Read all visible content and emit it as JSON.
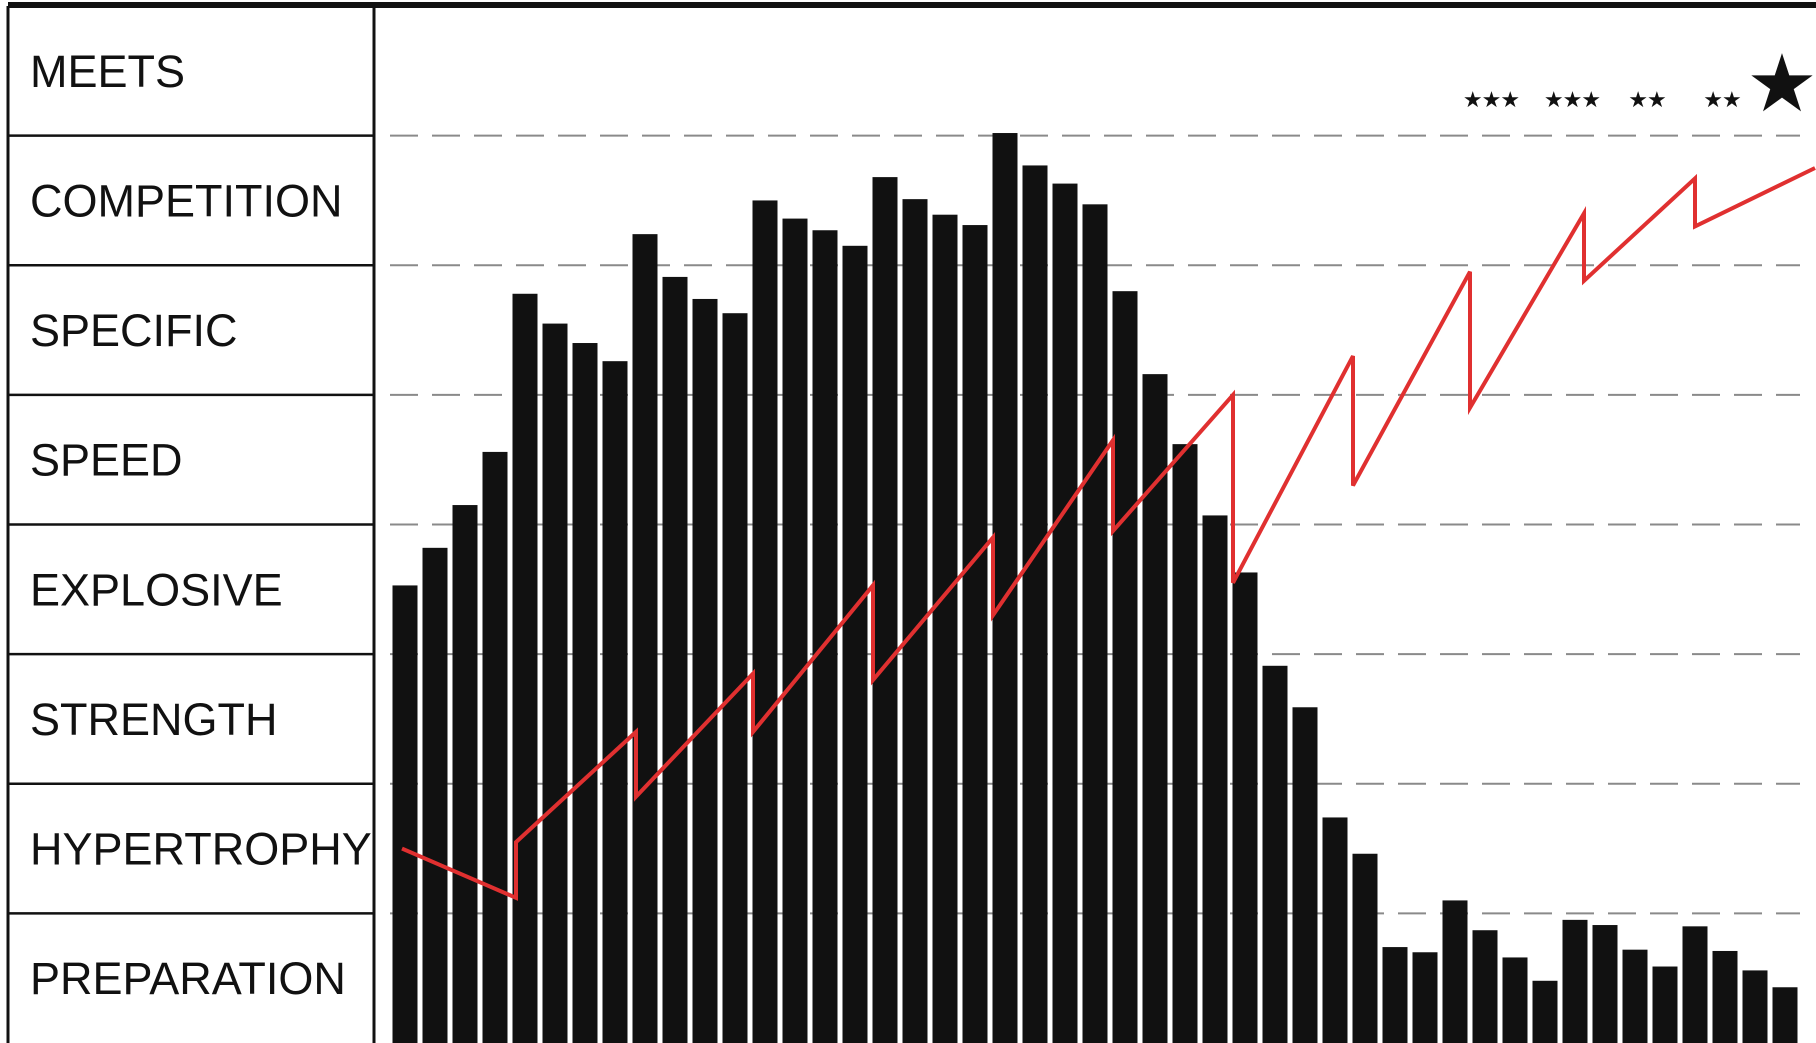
{
  "chart_data": {
    "type": "bar",
    "title": "",
    "xlabel": "",
    "ylabel": "",
    "grid": true,
    "ylim": [
      0,
      8
    ],
    "phases": [
      "MEETS",
      "COMPETITION",
      "SPECIFIC",
      "SPEED",
      "EXPLOSIVE",
      "STRENGTH",
      "HYPERTROPHY",
      "PREPARATION"
    ],
    "weeks": 47,
    "volume_values": [
      3.53,
      3.82,
      4.15,
      4.56,
      5.78,
      5.55,
      5.4,
      5.26,
      6.24,
      5.91,
      5.74,
      5.63,
      6.5,
      6.36,
      6.27,
      6.15,
      6.68,
      6.51,
      6.39,
      6.31,
      7.02,
      6.77,
      6.63,
      6.47,
      5.8,
      5.16,
      4.62,
      4.07,
      3.63,
      2.91,
      2.59,
      1.74,
      1.46,
      0.74,
      0.7,
      1.1,
      0.87,
      0.66,
      0.48,
      0.95,
      0.91,
      0.72,
      0.59,
      0.9,
      0.71,
      0.56,
      0.43
    ],
    "intensity_line": [
      {
        "x": 0.4,
        "y": 1.5
      },
      {
        "x": 4.2,
        "y": 1.12
      },
      {
        "x": 4.2,
        "y": 1.55
      },
      {
        "x": 8.2,
        "y": 2.4
      },
      {
        "x": 8.2,
        "y": 1.9
      },
      {
        "x": 12.1,
        "y": 2.85
      },
      {
        "x": 12.1,
        "y": 2.4
      },
      {
        "x": 16.1,
        "y": 3.53
      },
      {
        "x": 16.1,
        "y": 2.8
      },
      {
        "x": 20.1,
        "y": 3.9
      },
      {
        "x": 20.1,
        "y": 3.3
      },
      {
        "x": 24.1,
        "y": 4.65
      },
      {
        "x": 24.1,
        "y": 3.95
      },
      {
        "x": 28.1,
        "y": 5.0
      },
      {
        "x": 28.1,
        "y": 3.55
      },
      {
        "x": 32.1,
        "y": 5.3
      },
      {
        "x": 32.1,
        "y": 4.3
      },
      {
        "x": 36.0,
        "y": 5.95
      },
      {
        "x": 36.0,
        "y": 4.9
      },
      {
        "x": 39.8,
        "y": 6.4
      },
      {
        "x": 39.8,
        "y": 5.88
      },
      {
        "x": 43.5,
        "y": 6.67
      },
      {
        "x": 43.5,
        "y": 6.3
      },
      {
        "x": 47.5,
        "y": 6.75
      }
    ],
    "meet_markers": [
      {
        "x": 36.7,
        "stars": "★★★"
      },
      {
        "x": 39.4,
        "stars": "★★★"
      },
      {
        "x": 41.9,
        "stars": "★★"
      },
      {
        "x": 44.4,
        "stars": "★★"
      },
      {
        "x": 46.4,
        "stars": "★"
      }
    ],
    "colors": {
      "bars": "#111111",
      "intensity_line": "#e03030",
      "grid": "#8a8a8a",
      "text": "#111111",
      "frame": "#111111"
    }
  }
}
